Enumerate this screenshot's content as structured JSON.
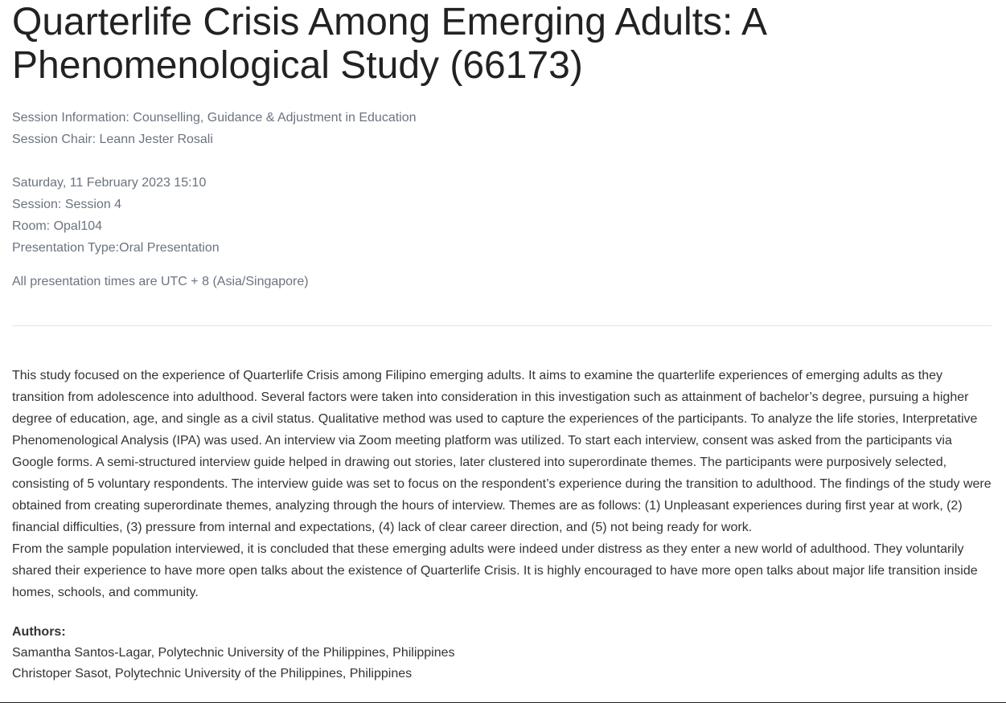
{
  "title": "Quarterlife Crisis Among Emerging Adults: A Phenomenological Study (66173)",
  "session_info": {
    "information": "Session Information: Counselling, Guidance & Adjustment in Education",
    "chair": "Session Chair: Leann Jester Rosali"
  },
  "schedule": {
    "datetime": "Saturday, 11 February 2023 15:10",
    "session": "Session: Session 4",
    "room": "Room: Opal104",
    "type": "Presentation Type:Oral Presentation"
  },
  "timezone_note": "All presentation times are UTC + 8 (Asia/Singapore)",
  "abstract": [
    "This study focused on the experience of Quarterlife Crisis among Filipino emerging adults. It aims to examine the quarterlife experiences of emerging adults as they transition from adolescence into adulthood. Several factors were taken into consideration in this investigation such as attainment of bachelor’s degree, pursuing a higher degree of education, age, and single as a civil status. Qualitative method was used to capture the experiences of the participants. To analyze the life stories, Interpretative Phenomenological Analysis (IPA) was used. An interview via Zoom meeting platform was utilized. To start each interview, consent was asked from the participants via Google forms. A semi-structured interview guide helped in drawing out stories, later clustered into superordinate themes. The participants were purposively selected, consisting of 5 voluntary respondents. The interview guide was set to focus on the respondent’s experience during the transition to adulthood. The findings of the study were obtained from creating superordinate themes, analyzing through the hours of interview. Themes are as follows: (1) Unpleasant experiences during first year at work, (2) financial difficulties, (3) pressure from internal and expectations, (4) lack of clear career direction, and (5) not being ready for work.",
    "From the sample population interviewed, it is concluded that these emerging adults were indeed under distress as they enter a new world of adulthood. They voluntarily shared their experience to have more open talks about the existence of Quarterlife Crisis. It is highly encouraged to have more open talks about major life transition inside homes, schools, and community."
  ],
  "authors": {
    "heading": "Authors:",
    "list": [
      "Samantha Santos-Lagar, Polytechnic University of the Philippines, Philippines",
      "Christoper Sasot, Polytechnic University of the Philippines, Philippines"
    ]
  }
}
